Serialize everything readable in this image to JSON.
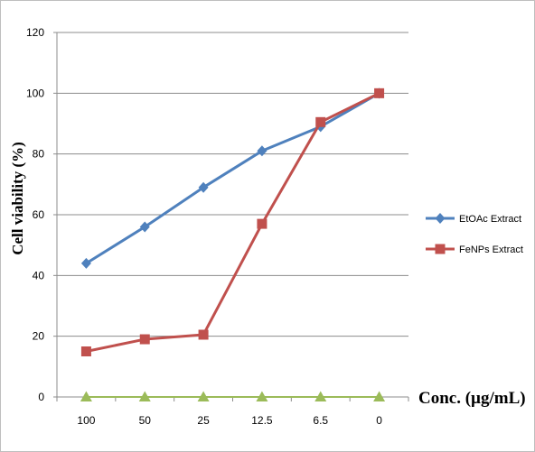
{
  "chart_data": {
    "type": "line",
    "title": "",
    "xlabel": "Conc. (µg/mL)",
    "ylabel": "Cell viability (%)",
    "categories": [
      "100",
      "50",
      "25",
      "12.5",
      "6.5",
      "0"
    ],
    "ylim": [
      0,
      120
    ],
    "yticks": [
      "0",
      "20",
      "40",
      "60",
      "80",
      "100",
      "120"
    ],
    "grid": true,
    "legend_position": "right",
    "series": [
      {
        "name": "EtOAc Extract",
        "values": [
          44,
          56,
          69,
          81,
          89,
          100
        ],
        "color": "#4f81bd",
        "marker": "diamond"
      },
      {
        "name": "FeNPs Extract",
        "values": [
          15,
          19,
          20.5,
          57,
          90.5,
          100
        ],
        "color": "#c0504d",
        "marker": "square"
      },
      {
        "name": "",
        "values": [
          0,
          0,
          0,
          0,
          0,
          0
        ],
        "color": "#9bbb59",
        "marker": "triangle"
      }
    ]
  }
}
